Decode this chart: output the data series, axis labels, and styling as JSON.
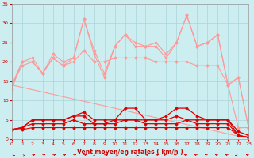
{
  "x": [
    0,
    1,
    2,
    3,
    4,
    5,
    6,
    7,
    8,
    9,
    10,
    11,
    12,
    13,
    14,
    15,
    16,
    17,
    18,
    19,
    20,
    21,
    22,
    23
  ],
  "line1": [
    14,
    20,
    20,
    17,
    21,
    19,
    20,
    23,
    20,
    20,
    21,
    21,
    21,
    21,
    20,
    20,
    20,
    20,
    19,
    19,
    19,
    14,
    3,
    3
  ],
  "line2": [
    14,
    19,
    20,
    17,
    21,
    19,
    21,
    31,
    22,
    16,
    24,
    27,
    24,
    24,
    24,
    21,
    25,
    32,
    24,
    25,
    27,
    14,
    16,
    3
  ],
  "line3": [
    13,
    20,
    21,
    17,
    22,
    20,
    21,
    31,
    23,
    17,
    24,
    27,
    25,
    24,
    25,
    22,
    25,
    32,
    24,
    25,
    27,
    14,
    16,
    3
  ],
  "line4_trend": [
    14,
    13.4,
    12.8,
    12.2,
    11.6,
    11.0,
    10.4,
    9.8,
    9.2,
    8.6,
    8.0,
    7.4,
    6.8,
    6.2,
    5.6,
    5.0,
    4.4,
    3.8,
    3.2,
    2.6,
    2.0,
    1.4,
    0.8,
    0.3
  ],
  "line5": [
    2.5,
    3,
    5,
    5,
    5,
    5,
    6,
    7,
    5,
    5,
    5,
    8,
    8,
    5,
    5,
    6,
    8,
    8,
    6,
    5,
    5,
    5,
    2,
    1
  ],
  "line6": [
    2.5,
    3,
    5,
    5,
    5,
    5,
    6,
    6,
    4,
    4,
    5,
    5,
    5,
    5,
    5,
    5,
    6,
    5,
    5,
    5,
    5,
    5,
    1,
    0.5
  ],
  "line7": [
    2.5,
    3,
    4,
    4,
    4,
    4,
    5,
    4,
    4,
    4,
    4,
    5,
    5,
    4,
    4,
    4,
    4,
    5,
    4,
    4,
    4,
    4,
    1,
    0.5
  ],
  "line8": [
    2.5,
    2.5,
    3,
    3,
    3,
    3,
    3,
    3,
    3,
    3,
    3,
    3,
    3,
    3,
    3,
    3,
    3,
    3,
    3,
    3,
    3,
    3,
    1,
    0.5
  ],
  "bg_color": "#cceef0",
  "grid_color": "#aad4d8",
  "line_color_light": "#ff9999",
  "line_color_dark": "#dd0000",
  "xlabel": "Vent moyen/en rafales ( km/h )",
  "ylim": [
    0,
    35
  ],
  "xlim": [
    0,
    23
  ],
  "yticks": [
    0,
    5,
    10,
    15,
    20,
    25,
    30,
    35
  ]
}
